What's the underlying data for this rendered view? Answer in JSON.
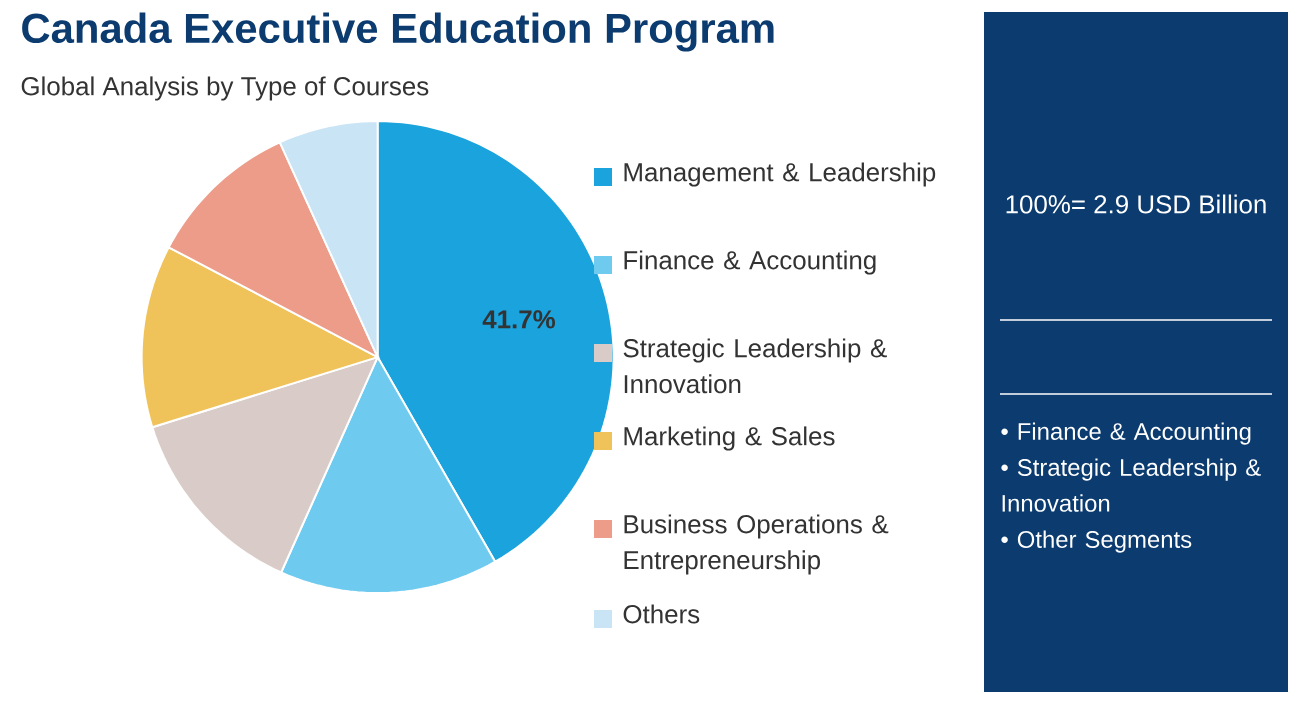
{
  "chart_data": {
    "type": "pie",
    "title": "Canada Executive Education Program",
    "subtitle": "Global Analysis by Type of Courses",
    "categories": [
      "Management & Leadership",
      "Finance & Accounting",
      "Strategic Leadership & Innovation",
      "Marketing & Sales",
      "Business Operations & Entrepreneurship",
      "Others"
    ],
    "values": [
      41.7,
      15,
      13.5,
      12.5,
      10.5,
      6.8
    ],
    "colors": [
      "#1aa3dc",
      "#6fcaf0",
      "#d9ccc8",
      "#f0c35a",
      "#ec9c88",
      "#c8e4f5"
    ],
    "value_labels": [
      "41.7%",
      null,
      null,
      null,
      null,
      null
    ],
    "legend": "right",
    "annotations": [
      "100%= 2.9 USD Billion",
      "• Finance & Accounting",
      "• Strategic Leadership & Innovation",
      "• Other Segments"
    ]
  }
}
